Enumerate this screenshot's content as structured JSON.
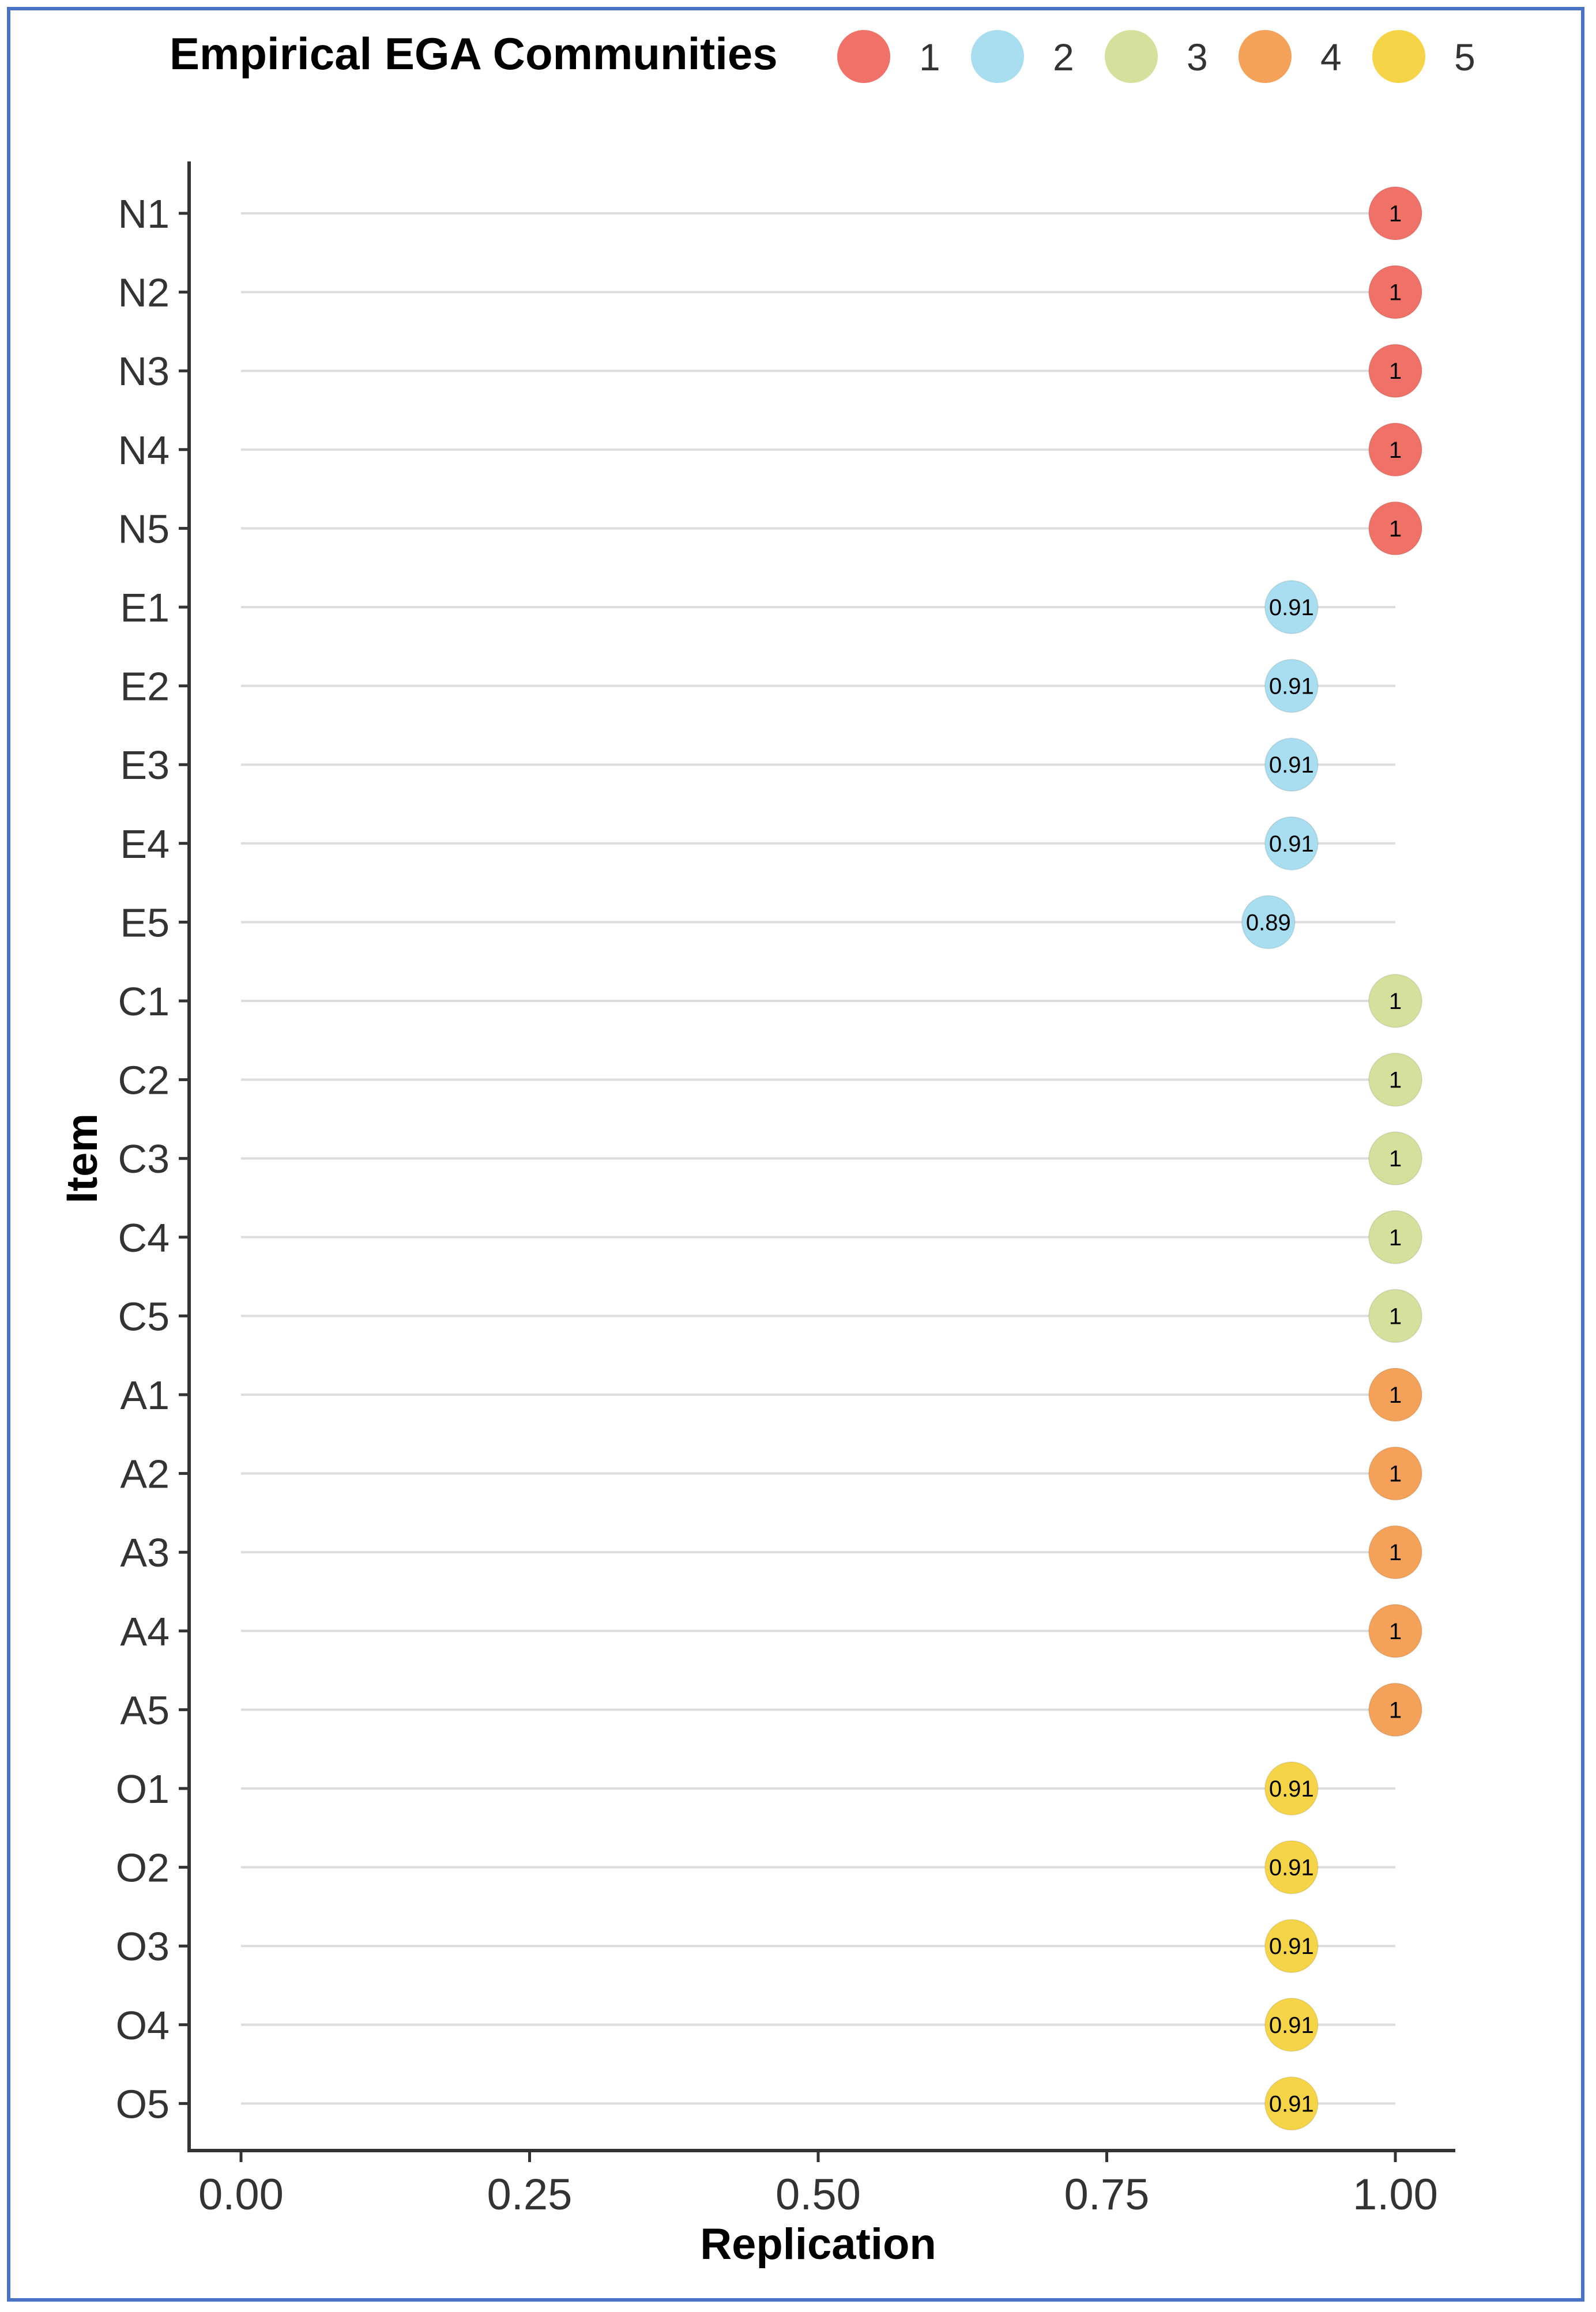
{
  "chart_data": {
    "type": "lollipop",
    "xlabel": "Replication",
    "ylabel": "Item",
    "xlim": [
      0,
      1
    ],
    "x_ticks": [
      "0.00",
      "0.25",
      "0.50",
      "0.75",
      "1.00"
    ],
    "grid": "horizontal lines per item",
    "legend": {
      "title": "Empirical EGA Communities",
      "position": "top",
      "entries": [
        {
          "label": "1",
          "color": "#f07167"
        },
        {
          "label": "2",
          "color": "#a8def0"
        },
        {
          "label": "3",
          "color": "#d4e09b"
        },
        {
          "label": "4",
          "color": "#f4a259"
        },
        {
          "label": "5",
          "color": "#f5d547"
        }
      ]
    },
    "items": [
      {
        "item": "N1",
        "community": "1",
        "value": 1.0,
        "label": "1"
      },
      {
        "item": "N2",
        "community": "1",
        "value": 1.0,
        "label": "1"
      },
      {
        "item": "N3",
        "community": "1",
        "value": 1.0,
        "label": "1"
      },
      {
        "item": "N4",
        "community": "1",
        "value": 1.0,
        "label": "1"
      },
      {
        "item": "N5",
        "community": "1",
        "value": 1.0,
        "label": "1"
      },
      {
        "item": "E1",
        "community": "2",
        "value": 0.91,
        "label": "0.91"
      },
      {
        "item": "E2",
        "community": "2",
        "value": 0.91,
        "label": "0.91"
      },
      {
        "item": "E3",
        "community": "2",
        "value": 0.91,
        "label": "0.91"
      },
      {
        "item": "E4",
        "community": "2",
        "value": 0.91,
        "label": "0.91"
      },
      {
        "item": "E5",
        "community": "2",
        "value": 0.89,
        "label": "0.89"
      },
      {
        "item": "C1",
        "community": "3",
        "value": 1.0,
        "label": "1"
      },
      {
        "item": "C2",
        "community": "3",
        "value": 1.0,
        "label": "1"
      },
      {
        "item": "C3",
        "community": "3",
        "value": 1.0,
        "label": "1"
      },
      {
        "item": "C4",
        "community": "3",
        "value": 1.0,
        "label": "1"
      },
      {
        "item": "C5",
        "community": "3",
        "value": 1.0,
        "label": "1"
      },
      {
        "item": "A1",
        "community": "4",
        "value": 1.0,
        "label": "1"
      },
      {
        "item": "A2",
        "community": "4",
        "value": 1.0,
        "label": "1"
      },
      {
        "item": "A3",
        "community": "4",
        "value": 1.0,
        "label": "1"
      },
      {
        "item": "A4",
        "community": "4",
        "value": 1.0,
        "label": "1"
      },
      {
        "item": "A5",
        "community": "4",
        "value": 1.0,
        "label": "1"
      },
      {
        "item": "O1",
        "community": "5",
        "value": 0.91,
        "label": "0.91"
      },
      {
        "item": "O2",
        "community": "5",
        "value": 0.91,
        "label": "0.91"
      },
      {
        "item": "O3",
        "community": "5",
        "value": 0.91,
        "label": "0.91"
      },
      {
        "item": "O4",
        "community": "5",
        "value": 0.91,
        "label": "0.91"
      },
      {
        "item": "O5",
        "community": "5",
        "value": 0.91,
        "label": "0.91"
      }
    ]
  }
}
